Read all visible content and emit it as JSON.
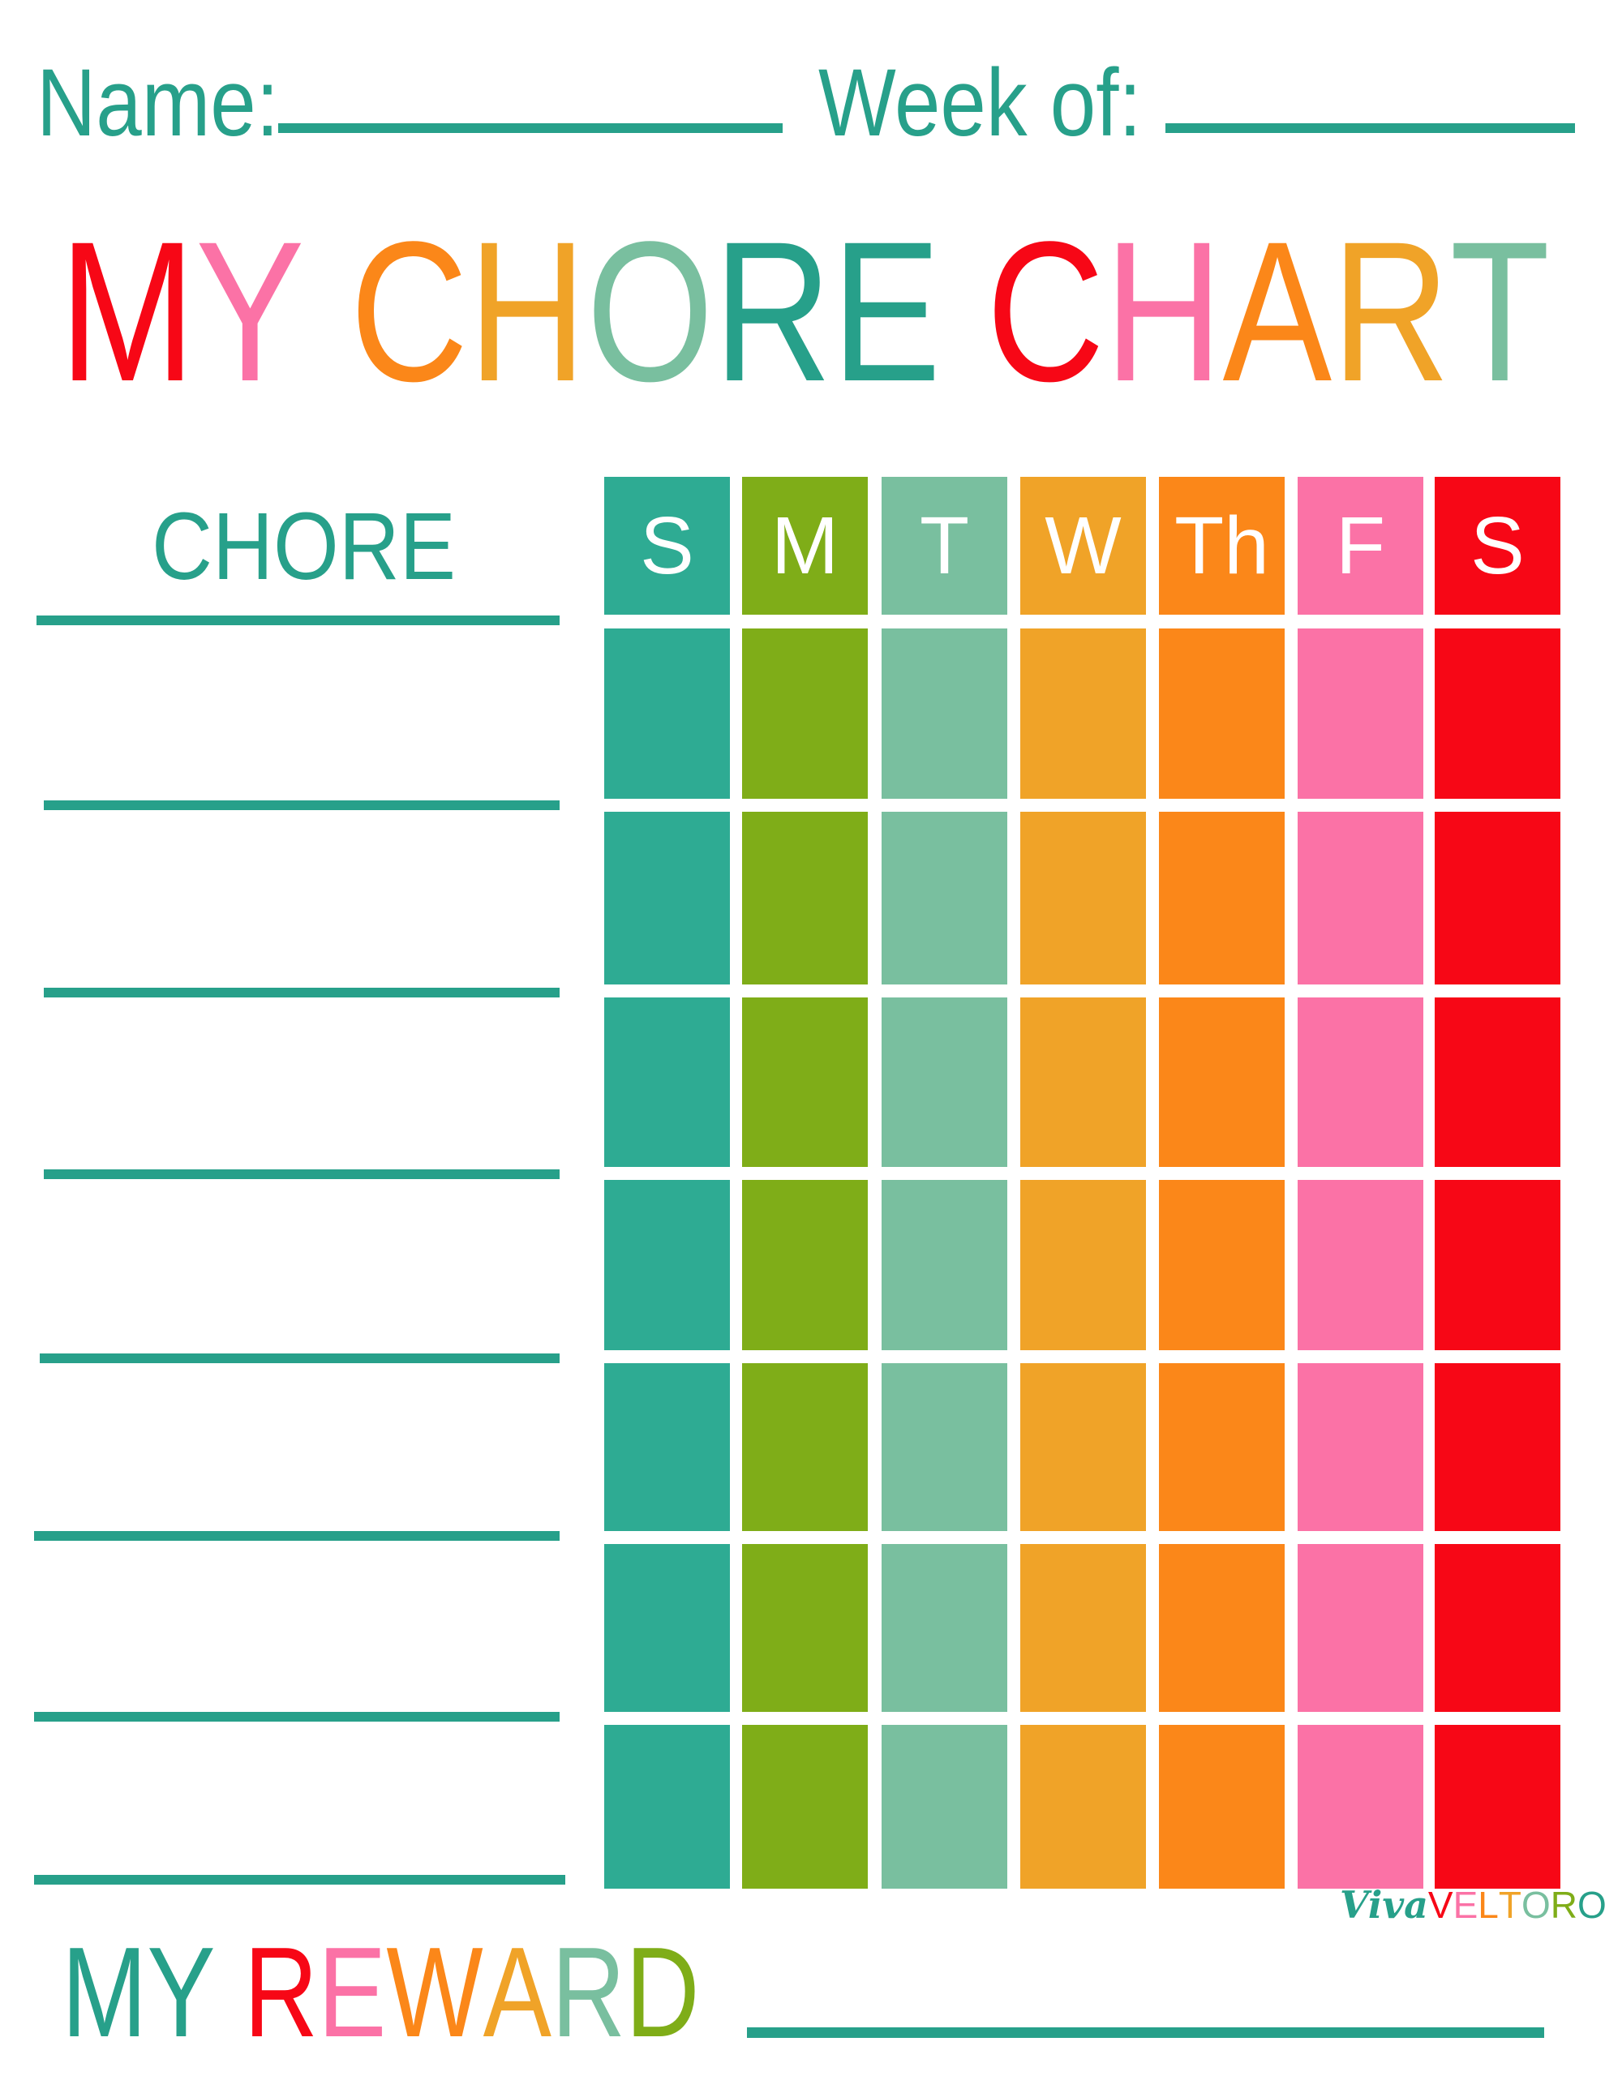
{
  "header": {
    "name_label": "Name:",
    "week_label": "Week of:"
  },
  "title": {
    "letters": [
      {
        "ch": "M",
        "color": "#f70716"
      },
      {
        "ch": "Y",
        "color": "#fb72a6"
      },
      {
        "ch": " ",
        "color": "#fff"
      },
      {
        "ch": "C",
        "color": "#fb8719"
      },
      {
        "ch": "H",
        "color": "#f0a328"
      },
      {
        "ch": "O",
        "color": "#79bf9f"
      },
      {
        "ch": "R",
        "color": "#27a08a"
      },
      {
        "ch": "E",
        "color": "#27a08a"
      },
      {
        "ch": " ",
        "color": "#fff"
      },
      {
        "ch": "C",
        "color": "#f70716"
      },
      {
        "ch": "H",
        "color": "#fb72a6"
      },
      {
        "ch": "A",
        "color": "#fb8719"
      },
      {
        "ch": "R",
        "color": "#f0a328"
      },
      {
        "ch": "T",
        "color": "#79bf9f"
      }
    ]
  },
  "chore_heading": "CHORE",
  "days": [
    {
      "label": "S",
      "color": "#2eab93"
    },
    {
      "label": "M",
      "color": "#7fad18"
    },
    {
      "label": "T",
      "color": "#79bf9f"
    },
    {
      "label": "W",
      "color": "#f0a328"
    },
    {
      "label": "Th",
      "color": "#fb8719"
    },
    {
      "label": "F",
      "color": "#fb72a6"
    },
    {
      "label": "S",
      "color": "#f70716"
    }
  ],
  "chore_rows": 7,
  "reward": {
    "letters": [
      {
        "ch": "M",
        "color": "#27a08a"
      },
      {
        "ch": "Y",
        "color": "#27a08a"
      },
      {
        "ch": " ",
        "color": "#fff"
      },
      {
        "ch": "R",
        "color": "#f70716"
      },
      {
        "ch": "E",
        "color": "#fb72a6"
      },
      {
        "ch": "W",
        "color": "#fb8719"
      },
      {
        "ch": "A",
        "color": "#f0a328"
      },
      {
        "ch": "R",
        "color": "#79bf9f"
      },
      {
        "ch": "D",
        "color": "#7fad18"
      }
    ]
  },
  "logo": {
    "viva": "Viva",
    "veltoro": [
      {
        "ch": "V",
        "color": "#f70716"
      },
      {
        "ch": "E",
        "color": "#fb72a6"
      },
      {
        "ch": "L",
        "color": "#fb8719"
      },
      {
        "ch": "T",
        "color": "#f0a328"
      },
      {
        "ch": "O",
        "color": "#79bf9f"
      },
      {
        "ch": "R",
        "color": "#7fad18"
      },
      {
        "ch": "O",
        "color": "#27a08a"
      }
    ]
  }
}
